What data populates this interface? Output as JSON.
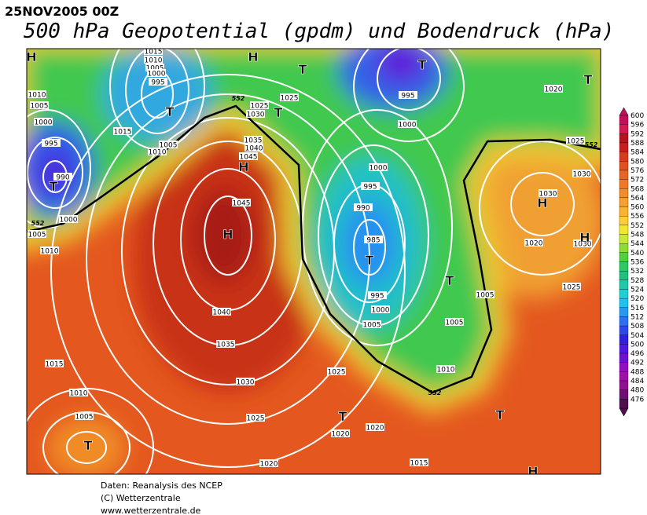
{
  "header": {
    "date": "25NOV2005  00Z",
    "title": "500 hPa Geopotential (gpdm) und Bodendruck (hPa)"
  },
  "isobar_labels": [
    1015,
    1010,
    1005,
    1000,
    995,
    1010,
    1005,
    1000,
    995,
    990,
    1000,
    1005,
    1010,
    1015,
    1005,
    1010,
    1025,
    1030,
    1025,
    1035,
    1040,
    1045,
    1045,
    1040,
    1035,
    1030,
    1025,
    1020,
    1015,
    1010,
    1005,
    995,
    1000,
    1000,
    995,
    990,
    985,
    995,
    1000,
    1005,
    1005,
    1005,
    1010,
    1025,
    1020,
    1020,
    1015,
    1020,
    1025,
    1030,
    1030,
    1020,
    1030,
    1025
  ],
  "contour_labels": [
    552,
    552,
    552,
    552
  ],
  "pressure_centers": [
    "H",
    "H",
    "T",
    "T",
    "T",
    "T",
    "T",
    "T",
    "H",
    "H",
    "H",
    "H",
    "T",
    "T",
    "T",
    "T",
    "T",
    "H"
  ],
  "colorbar": {
    "labels": [
      600,
      596,
      592,
      588,
      584,
      580,
      576,
      572,
      568,
      564,
      560,
      556,
      552,
      548,
      544,
      540,
      536,
      532,
      528,
      524,
      520,
      516,
      512,
      508,
      504,
      500,
      496,
      492,
      488,
      484,
      480,
      476
    ],
    "colors": [
      "#c0105a",
      "#d41a50",
      "#b4141e",
      "#c81e1e",
      "#d73c1e",
      "#e05020",
      "#e86424",
      "#ee7828",
      "#f28c2c",
      "#f5a030",
      "#f8b432",
      "#fcd034",
      "#f0e830",
      "#c8e832",
      "#90dc36",
      "#50d040",
      "#30c860",
      "#20c080",
      "#20c8a8",
      "#20d0d0",
      "#20c0f0",
      "#2898f0",
      "#3070f0",
      "#3048e8",
      "#3020e0",
      "#5018e0",
      "#7010d0",
      "#9010c0",
      "#a010a8",
      "#901090",
      "#701070",
      "#501050"
    ]
  },
  "footer": [
    "Daten: Reanalysis des NCEP",
    "(C) Wetterzentrale",
    "www.wetterzentrale.de"
  ]
}
